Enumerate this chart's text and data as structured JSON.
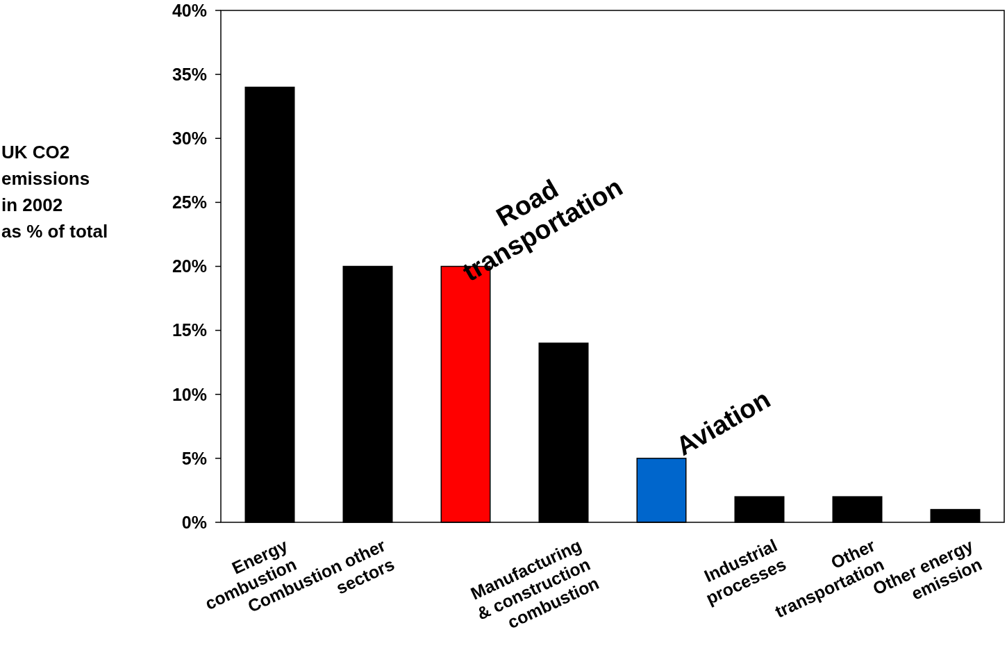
{
  "chart_data": {
    "type": "bar",
    "ylabel": "UK CO2\nemissions\nin 2002\nas % of total",
    "categories": [
      "Energy\ncombustion",
      "Combustion other\nsectors",
      null,
      "Manufacturing\n& construction\ncombustion",
      null,
      "Industrial\nprocesses",
      "Other\ntransportation",
      "Other energy\nemission"
    ],
    "values": [
      34,
      20,
      20,
      14,
      5,
      2,
      2,
      1
    ],
    "colors": [
      "#000000",
      "#000000",
      "#ff0000",
      "#000000",
      "#0066cc",
      "#000000",
      "#000000",
      "#000000"
    ],
    "ylim": [
      0,
      40
    ],
    "yticks": [
      {
        "value": 0,
        "label": "0%"
      },
      {
        "value": 5,
        "label": "5%"
      },
      {
        "value": 10,
        "label": "10%"
      },
      {
        "value": 15,
        "label": "15%"
      },
      {
        "value": 20,
        "label": "20%"
      },
      {
        "value": 25,
        "label": "25%"
      },
      {
        "value": 30,
        "label": "30%"
      },
      {
        "value": 35,
        "label": "35%"
      },
      {
        "value": 40,
        "label": "40%"
      }
    ],
    "annotations": [
      "Road\ntransportation",
      "Aviation"
    ]
  }
}
